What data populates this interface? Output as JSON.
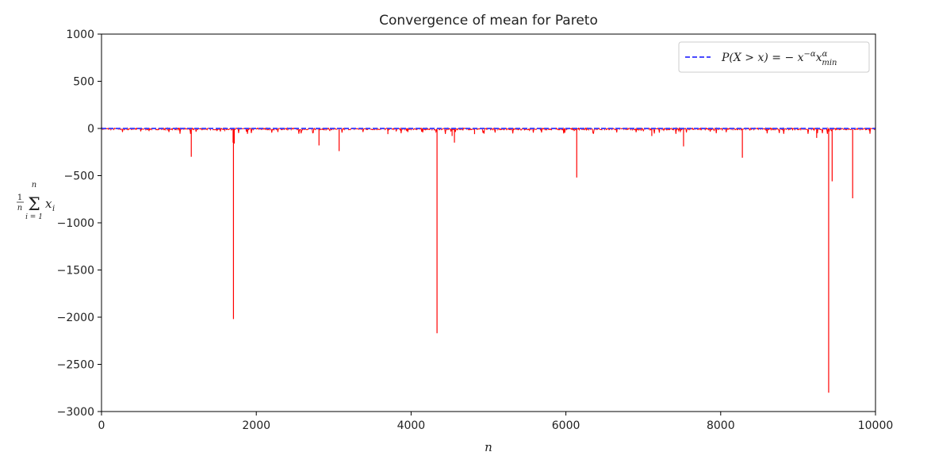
{
  "chart_data": {
    "type": "line",
    "title": "Convergence of mean for Pareto",
    "xlabel": "n",
    "ylabel": "1/n Σ_{i=1}^{n} x_i",
    "xlim": [
      0,
      10000
    ],
    "ylim": [
      -3000,
      1000
    ],
    "xticks": [
      0,
      2000,
      4000,
      6000,
      8000,
      10000
    ],
    "yticks": [
      1000,
      500,
      0,
      -500,
      -1000,
      -1500,
      -2000,
      -2500,
      -3000
    ],
    "xtick_labels": [
      "0",
      "2000",
      "4000",
      "6000",
      "8000",
      "10000"
    ],
    "ytick_labels": [
      "1000",
      "500",
      "0",
      "−500",
      "−1000",
      "−1500",
      "−2000",
      "−2500",
      "−3000"
    ],
    "grid": false,
    "legend": {
      "placement": "upper right",
      "entries": [
        {
          "label": "P(X > x) = −x^{−α} x_min^α",
          "style": "dashed",
          "color": "#4a4aff"
        }
      ]
    },
    "series": [
      {
        "style": "solid",
        "color": "#ff0000",
        "baseline": -5,
        "spikes": [
          {
            "x": 1160,
            "y": -300
          },
          {
            "x": 1705,
            "y": -2020
          },
          {
            "x": 1700,
            "y": -150
          },
          {
            "x": 1715,
            "y": -160
          },
          {
            "x": 2810,
            "y": -180
          },
          {
            "x": 3070,
            "y": -240
          },
          {
            "x": 3700,
            "y": -60
          },
          {
            "x": 4335,
            "y": -2170
          },
          {
            "x": 4530,
            "y": -80
          },
          {
            "x": 4560,
            "y": -150
          },
          {
            "x": 4820,
            "y": -60
          },
          {
            "x": 6140,
            "y": -520
          },
          {
            "x": 7110,
            "y": -80
          },
          {
            "x": 7520,
            "y": -190
          },
          {
            "x": 8280,
            "y": -310
          },
          {
            "x": 9240,
            "y": -100
          },
          {
            "x": 9395,
            "y": -2800
          },
          {
            "x": 9440,
            "y": -560
          },
          {
            "x": 9705,
            "y": -740
          }
        ]
      },
      {
        "style": "dashed",
        "color": "#4a4aff",
        "constant_y": 0
      }
    ]
  }
}
